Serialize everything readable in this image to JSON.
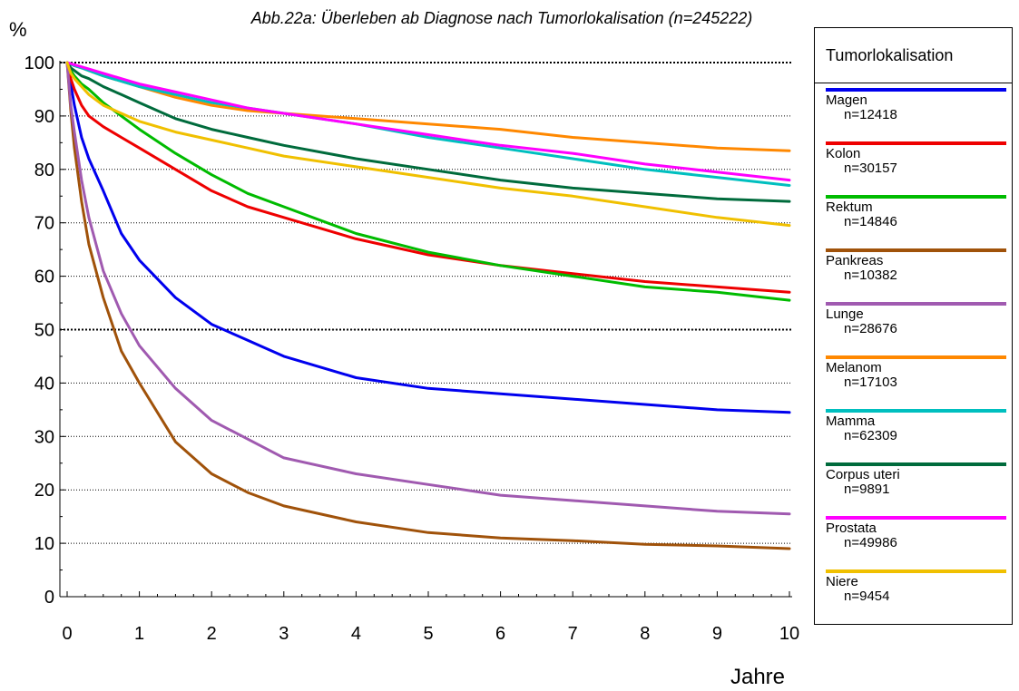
{
  "chart_data": {
    "type": "line",
    "title": "Abb.22a: Überleben ab Diagnose nach Tumorlokalisation  (n=245222)",
    "ylabel": "%",
    "xlabel": "Jahre",
    "xlim": [
      0,
      10
    ],
    "ylim": [
      0,
      100
    ],
    "x_ticks": [
      0,
      1,
      2,
      3,
      4,
      5,
      6,
      7,
      8,
      9,
      10
    ],
    "y_ticks": [
      0,
      10,
      20,
      30,
      40,
      50,
      60,
      70,
      80,
      90,
      100
    ],
    "grid": "horizontal dotted",
    "legend_title": "Tumorlokalisation",
    "legend_position": "right",
    "x": [
      0,
      0.05,
      0.1,
      0.2,
      0.3,
      0.5,
      0.75,
      1,
      1.5,
      2,
      2.5,
      3,
      4,
      5,
      6,
      7,
      8,
      9,
      10
    ],
    "series": [
      {
        "name": "Magen",
        "n": "n=12418",
        "color": "#0000ee",
        "values": [
          100,
          96,
          92,
          86,
          82,
          76,
          68,
          63,
          56,
          51,
          48,
          45,
          41,
          39,
          38,
          37,
          36,
          35,
          34.5
        ]
      },
      {
        "name": "Kolon",
        "n": "n=30157",
        "color": "#ee0000",
        "values": [
          100,
          97,
          95,
          92,
          90,
          88,
          86,
          84,
          80,
          76,
          73,
          71,
          67,
          64,
          62,
          60.5,
          59,
          58,
          57
        ]
      },
      {
        "name": "Rektum",
        "n": "n=14846",
        "color": "#00bb00",
        "values": [
          100,
          98.5,
          97.5,
          96,
          95,
          92.5,
          90,
          87.5,
          83,
          79,
          75.5,
          73,
          68,
          64.5,
          62,
          60,
          58,
          57,
          55.5
        ]
      },
      {
        "name": "Pankreas",
        "n": "n=10382",
        "color": "#a0520a",
        "values": [
          100,
          91,
          84,
          74,
          66,
          56,
          46,
          40,
          29,
          23,
          19.5,
          17,
          14,
          12,
          11,
          10.5,
          9.8,
          9.5,
          9
        ]
      },
      {
        "name": "Lunge",
        "n": "n=28676",
        "color": "#a05ab0",
        "values": [
          100,
          92,
          87,
          78,
          71,
          61,
          53,
          47,
          39,
          33,
          29.5,
          26,
          23,
          21,
          19,
          18,
          17,
          16,
          15.5
        ]
      },
      {
        "name": "Melanom",
        "n": "n=17103",
        "color": "#ff8800",
        "values": [
          100,
          99.7,
          99.4,
          99,
          98.5,
          97.5,
          96.5,
          95.5,
          93.5,
          92,
          91,
          90.5,
          89.5,
          88.5,
          87.5,
          86,
          85,
          84,
          83.5
        ]
      },
      {
        "name": "Mamma",
        "n": "n=62309",
        "color": "#00bfbf",
        "values": [
          100,
          99.7,
          99.4,
          99,
          98.5,
          97.5,
          96.5,
          95.5,
          94,
          92.5,
          91.5,
          90.5,
          88.5,
          86,
          84,
          82,
          80,
          78.5,
          77
        ]
      },
      {
        "name": "Corpus uteri",
        "n": "n=9891",
        "color": "#006b3c",
        "values": [
          100,
          99,
          98.5,
          97.5,
          97,
          95.5,
          94,
          92.5,
          89.5,
          87.5,
          86,
          84.5,
          82,
          80,
          78,
          76.5,
          75.5,
          74.5,
          74
        ]
      },
      {
        "name": "Prostata",
        "n": "n=49986",
        "color": "#ff00ff",
        "values": [
          100,
          99.8,
          99.6,
          99.2,
          98.8,
          98,
          97,
          96,
          94.5,
          93,
          91.5,
          90.5,
          88.5,
          86.5,
          84.5,
          83,
          81,
          79.5,
          78
        ]
      },
      {
        "name": "Niere",
        "n": "n=9454",
        "color": "#f0c000",
        "values": [
          100,
          98,
          97,
          95.5,
          94,
          92,
          90.5,
          89,
          87,
          85.5,
          84,
          82.5,
          80.5,
          78.5,
          76.5,
          75,
          73,
          71,
          69.5
        ]
      }
    ]
  }
}
